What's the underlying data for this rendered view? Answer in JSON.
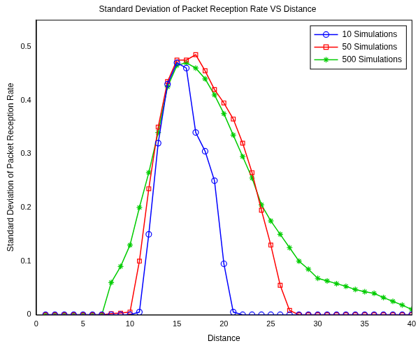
{
  "chart_data": {
    "type": "line",
    "title": "Standard Deviation of Packet Reception Rate VS Distance",
    "x_label": "Distance",
    "y_label": "Standard Deviation of Packet Reception Rate",
    "x": [
      1,
      2,
      3,
      4,
      5,
      6,
      7,
      8,
      9,
      10,
      11,
      12,
      13,
      14,
      15,
      16,
      17,
      18,
      19,
      20,
      21,
      22,
      23,
      24,
      25,
      26,
      27,
      28,
      29,
      30,
      31,
      32,
      33,
      34,
      35,
      36,
      37,
      38,
      39,
      40
    ],
    "series": [
      {
        "name": "10 Simulations",
        "color": "#0000ff",
        "marker": "circle",
        "values": [
          0,
          0,
          0,
          0,
          0,
          0,
          0,
          0,
          0,
          0,
          0.005,
          0.15,
          0.32,
          0.43,
          0.47,
          0.46,
          0.34,
          0.305,
          0.25,
          0.095,
          0.005,
          0,
          0,
          0,
          0,
          0,
          0,
          0,
          0,
          0,
          0,
          0,
          0,
          0,
          0,
          0,
          0,
          0,
          0,
          0
        ]
      },
      {
        "name": "50 Simulations",
        "color": "#ff0000",
        "marker": "square",
        "values": [
          0,
          0,
          0,
          0,
          0,
          0,
          0,
          0.002,
          0.003,
          0.005,
          0.1,
          0.235,
          0.35,
          0.435,
          0.475,
          0.475,
          0.485,
          0.455,
          0.42,
          0.395,
          0.365,
          0.32,
          0.265,
          0.195,
          0.13,
          0.055,
          0.008,
          0,
          0,
          0,
          0,
          0,
          0,
          0,
          0,
          0,
          0,
          0,
          0,
          0
        ]
      },
      {
        "name": "500 Simulations",
        "color": "#00cc00",
        "marker": "star",
        "values": [
          0,
          0,
          0,
          0,
          0,
          0,
          0,
          0.06,
          0.09,
          0.13,
          0.2,
          0.265,
          0.34,
          0.425,
          0.465,
          0.47,
          0.46,
          0.44,
          0.41,
          0.375,
          0.335,
          0.295,
          0.255,
          0.205,
          0.175,
          0.15,
          0.125,
          0.1,
          0.085,
          0.068,
          0.063,
          0.058,
          0.053,
          0.047,
          0.043,
          0.04,
          0.032,
          0.025,
          0.018,
          0.01
        ]
      }
    ],
    "xlim": [
      0,
      40
    ],
    "xticks": [
      0,
      5,
      10,
      15,
      20,
      25,
      30,
      35,
      40
    ],
    "ylim": [
      0,
      0.55
    ],
    "yticks": [
      0,
      0.1,
      0.2,
      0.3,
      0.4,
      0.5
    ],
    "grid": false,
    "legend": "upper right"
  }
}
